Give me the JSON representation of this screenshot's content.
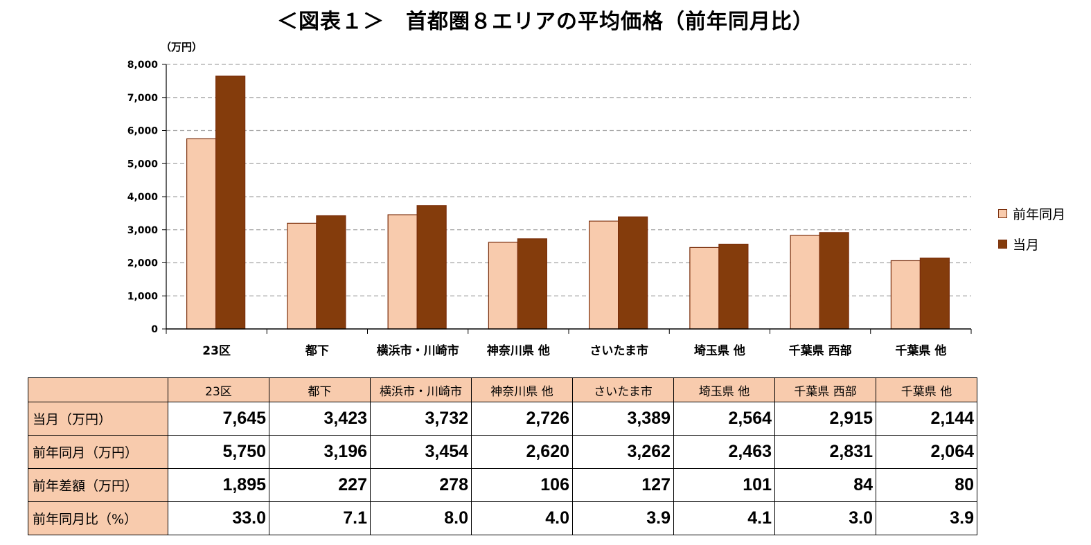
{
  "title": "＜図表１＞　首都圏８エリアの平均価格（前年同月比）",
  "unit_label": "（万円）",
  "colors": {
    "prev_year_fill": "#f8cbad",
    "current_fill": "#843c0c",
    "bar_outline": "#7a2d0a",
    "grid": "#a6a6a6",
    "table_header": "#f8cbad"
  },
  "chart_data": {
    "type": "bar",
    "title": "＜図表１＞　首都圏８エリアの平均価格（前年同月比）",
    "ylabel": "（万円）",
    "xlabel": "",
    "ylim": [
      0,
      8000
    ],
    "yticks": [
      "0",
      "1,000",
      "2,000",
      "3,000",
      "4,000",
      "5,000",
      "6,000",
      "7,000",
      "8,000"
    ],
    "grid": true,
    "legend_position": "right",
    "categories": [
      "23区",
      "都下",
      "横浜市・川崎市",
      "神奈川県 他",
      "さいたま市",
      "埼玉県 他",
      "千葉県 西部",
      "千葉県 他"
    ],
    "series": [
      {
        "name": "前年同月",
        "values": [
          5750,
          3196,
          3454,
          2620,
          3262,
          2463,
          2831,
          2064
        ]
      },
      {
        "name": "当月",
        "values": [
          7645,
          3423,
          3732,
          2726,
          3389,
          2564,
          2915,
          2144
        ]
      }
    ]
  },
  "table": {
    "headers": [
      "23区",
      "都下",
      "横浜市・川崎市",
      "神奈川県 他",
      "さいたま市",
      "埼玉県 他",
      "千葉県 西部",
      "千葉県 他"
    ],
    "rows": [
      {
        "label": "当月（万円）",
        "values": [
          "7,645",
          "3,423",
          "3,732",
          "2,726",
          "3,389",
          "2,564",
          "2,915",
          "2,144"
        ]
      },
      {
        "label": "前年同月（万円）",
        "values": [
          "5,750",
          "3,196",
          "3,454",
          "2,620",
          "3,262",
          "2,463",
          "2,831",
          "2,064"
        ]
      },
      {
        "label": "前年差額（万円）",
        "values": [
          "1,895",
          "227",
          "278",
          "106",
          "127",
          "101",
          "84",
          "80"
        ]
      },
      {
        "label": "前年同月比（%）",
        "values": [
          "33.0",
          "7.1",
          "8.0",
          "4.0",
          "3.9",
          "4.1",
          "3.0",
          "3.9"
        ]
      }
    ]
  }
}
